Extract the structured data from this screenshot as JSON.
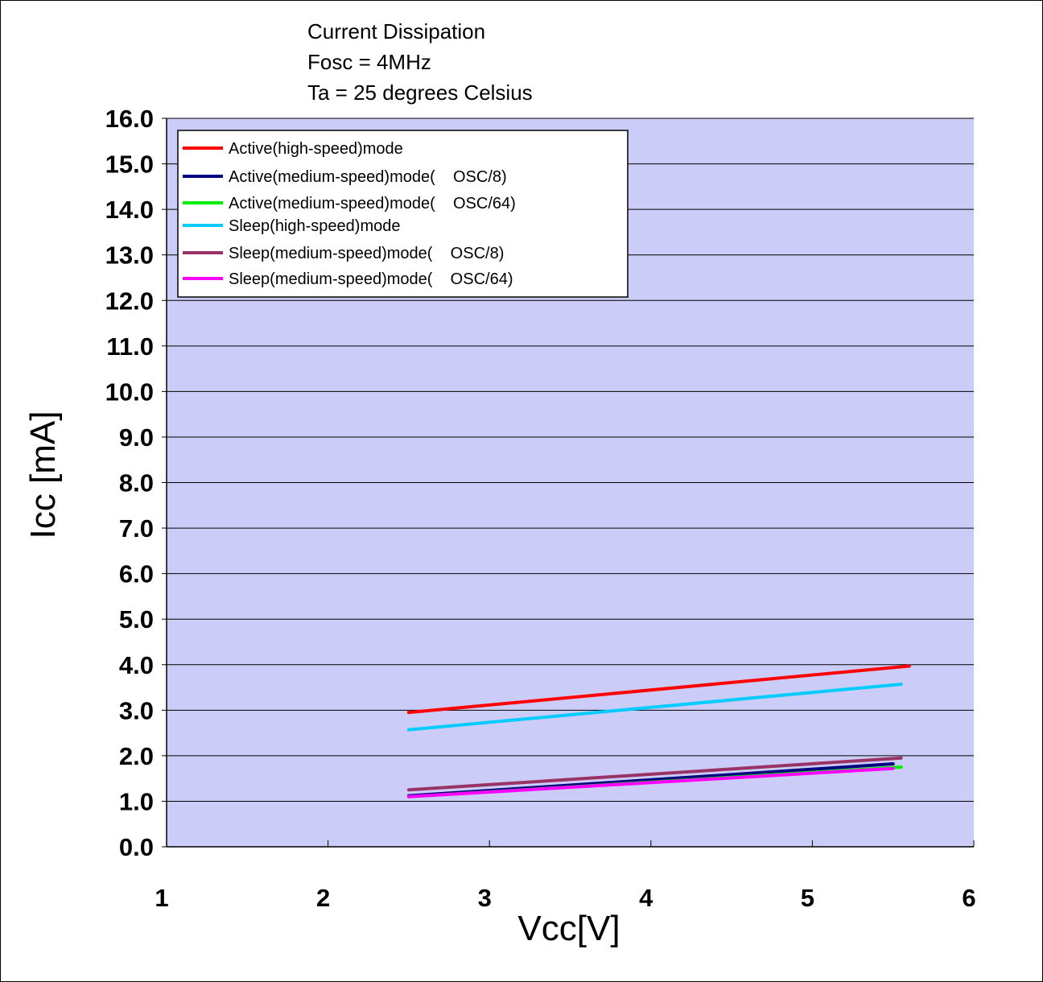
{
  "chart_data": {
    "type": "line",
    "title": "Current Dissipation",
    "subtitle_lines": [
      "Fosc = 4MHz",
      "Ta = 25 degrees Celsius"
    ],
    "xlabel": "Vcc[V]",
    "ylabel": "Icc [mA]",
    "xlim": [
      1,
      6
    ],
    "ylim": [
      0,
      16
    ],
    "x_ticks": [
      "1",
      "2",
      "3",
      "4",
      "5",
      "6"
    ],
    "y_ticks": [
      "0.0",
      "1.0",
      "2.0",
      "3.0",
      "4.0",
      "5.0",
      "6.0",
      "7.0",
      "8.0",
      "9.0",
      "10.0",
      "11.0",
      "12.0",
      "13.0",
      "14.0",
      "15.0",
      "16.0"
    ],
    "grid": "horizontal",
    "plot_background": "#ccccf8",
    "legend_placement": "top-left",
    "series": [
      {
        "name": "Active(high-speed)mode",
        "color": "#ff0000",
        "x": [
          2.5,
          5.6
        ],
        "y": [
          2.95,
          3.97
        ]
      },
      {
        "name": "Active(medium-speed)mode(    OSC/8)",
        "color": "#000080",
        "x": [
          2.5,
          5.5
        ],
        "y": [
          1.12,
          1.82
        ]
      },
      {
        "name": "Active(medium-speed)mode(    OSC/64)",
        "color": "#00ee00",
        "x": [
          2.5,
          5.55
        ],
        "y": [
          1.1,
          1.75
        ]
      },
      {
        "name": "Sleep(high-speed)mode",
        "color": "#00ccff",
        "x": [
          2.5,
          5.55
        ],
        "y": [
          2.57,
          3.57
        ]
      },
      {
        "name": "Sleep(medium-speed)mode(    OSC/8)",
        "color": "#993366",
        "x": [
          2.5,
          5.55
        ],
        "y": [
          1.25,
          1.95
        ]
      },
      {
        "name": "Sleep(medium-speed)mode(    OSC/64)",
        "color": "#ff00ff",
        "x": [
          2.5,
          5.5
        ],
        "y": [
          1.1,
          1.72
        ]
      }
    ]
  }
}
